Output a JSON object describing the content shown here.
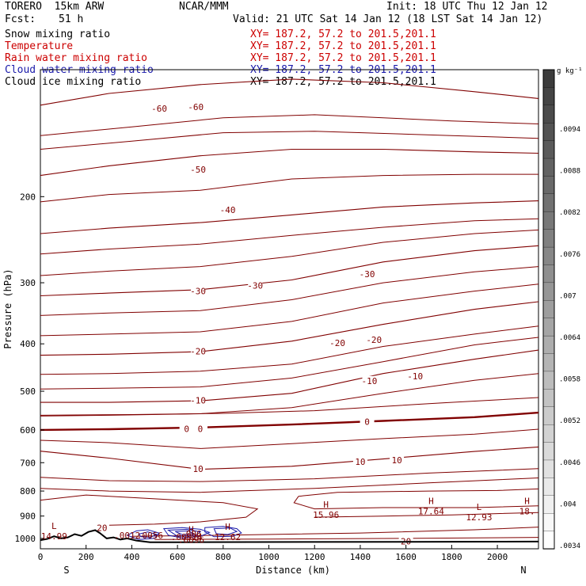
{
  "header": {
    "model": "TORERO  15km ARW",
    "center": "NCAR/MMM",
    "init": "Init: 18 UTC Thu 12 Jan 12",
    "fcst_label": "Fcst:",
    "fcst_value": "51 h",
    "valid": "Valid: 21 UTC Sat 14 Jan 12 (18 LST Sat 14 Jan 12)"
  },
  "fields": [
    {
      "name": "Snow mixing ratio",
      "xy": "XY= 187.2, 57.2 to 201.5,201.1",
      "color": "#000000"
    },
    {
      "name": "Temperature",
      "xy": "XY= 187.2, 57.2 to 201.5,201.1",
      "color": "#cc0000"
    },
    {
      "name": "Rain water mixing ratio",
      "xy": "XY= 187.2, 57.2 to 201.5,201.1",
      "color": "#cc0000"
    },
    {
      "name": "Cloud water mixing ratio",
      "xy": "XY= 187.2, 57.2 to 201.5,201.1",
      "color": "#1a1aaa"
    },
    {
      "name": "Cloud ice mixing ratio",
      "xy": "XY= 187.2, 57.2 to 201.5,201.1",
      "color": "#000000"
    }
  ],
  "chart_data": {
    "type": "contour cross-section",
    "xlabel": "Distance (km)",
    "ylabel": "Pressure (hPa)",
    "xlim": [
      0,
      2180
    ],
    "ylim": [
      1050,
      110
    ],
    "x_ticks": [
      0,
      200,
      400,
      600,
      800,
      1000,
      1200,
      1400,
      1600,
      1800,
      2000
    ],
    "y_ticks": [
      200,
      300,
      400,
      500,
      600,
      700,
      800,
      900,
      1000
    ],
    "x_end_labels": {
      "left": "S",
      "right": "N"
    },
    "grid": false,
    "colorbar": {
      "unit": "g kg⁻¹",
      "ticks": [
        ".0094",
        ".0088",
        ".0082",
        ".0076",
        ".007",
        ".0064",
        ".0058",
        ".0052",
        ".0046",
        ".004",
        ".0034"
      ]
    },
    "temperature_contours": [
      {
        "value": -60,
        "labels": [
          "-60",
          "-60"
        ]
      },
      {
        "value": -50,
        "labels": [
          "-50"
        ]
      },
      {
        "value": -40,
        "labels": [
          "-40"
        ]
      },
      {
        "value": -30,
        "labels": [
          "-30",
          "-30",
          "-30"
        ]
      },
      {
        "value": -20,
        "labels": [
          "-20",
          "-20",
          "-20"
        ]
      },
      {
        "value": -10,
        "labels": [
          "-10",
          "-10",
          "-10"
        ]
      },
      {
        "value": 0,
        "labels": [
          "0",
          "0",
          "0"
        ]
      },
      {
        "value": 10,
        "labels": [
          "10",
          "10",
          "10"
        ]
      },
      {
        "value": 20,
        "labels": [
          "20",
          "20"
        ]
      }
    ],
    "extrema": [
      {
        "kind": "L",
        "value": "14.99",
        "x_km": 60,
        "p_hPa": 963
      },
      {
        "kind": "H",
        "value": "15.96",
        "x_km": 1250,
        "p_hPa": 872
      },
      {
        "kind": "H",
        "value": "17.64",
        "x_km": 1710,
        "p_hPa": 857
      },
      {
        "kind": "L",
        "value": "12.93",
        "x_km": 1920,
        "p_hPa": 882
      },
      {
        "kind": "H",
        "value": "18.",
        "x_km": 2130,
        "p_hPa": 857
      },
      {
        "kind": "H",
        "value": ".6096",
        "x_km": 660,
        "p_hPa": 980
      },
      {
        "kind": "H",
        "value": "12.62",
        "x_km": 820,
        "p_hPa": 968
      }
    ],
    "small_labels": [
      ".0012",
      ".0056",
      ".006",
      ".00024"
    ]
  }
}
